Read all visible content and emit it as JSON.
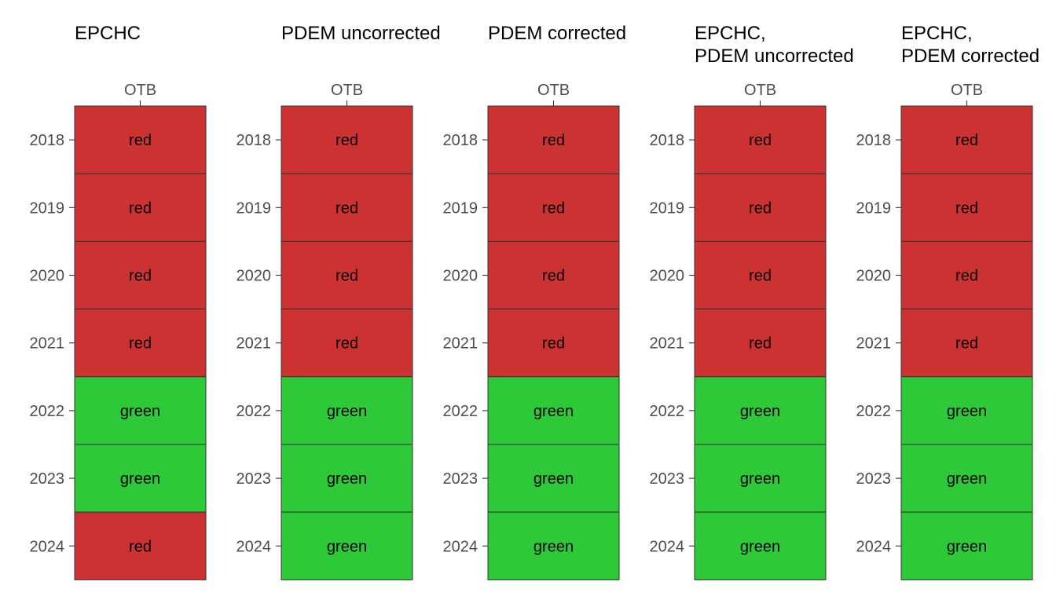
{
  "chart_data": {
    "type": "heatmap",
    "colors": {
      "red": "#CC3231",
      "green": "#2DC938",
      "border": "#333333"
    },
    "x_categories": [
      "OTB"
    ],
    "y_categories": [
      "2018",
      "2019",
      "2020",
      "2021",
      "2022",
      "2023",
      "2024"
    ],
    "panels": [
      {
        "title_lines": [
          "EPCHC"
        ],
        "values": [
          "red",
          "red",
          "red",
          "red",
          "green",
          "green",
          "red"
        ]
      },
      {
        "title_lines": [
          "PDEM uncorrected"
        ],
        "values": [
          "red",
          "red",
          "red",
          "red",
          "green",
          "green",
          "green"
        ]
      },
      {
        "title_lines": [
          "PDEM corrected"
        ],
        "values": [
          "red",
          "red",
          "red",
          "red",
          "green",
          "green",
          "green"
        ]
      },
      {
        "title_lines": [
          "EPCHC,",
          "PDEM uncorrected"
        ],
        "values": [
          "red",
          "red",
          "red",
          "red",
          "green",
          "green",
          "green"
        ]
      },
      {
        "title_lines": [
          "EPCHC,",
          "PDEM corrected"
        ],
        "values": [
          "red",
          "red",
          "red",
          "red",
          "green",
          "green",
          "green"
        ]
      }
    ]
  }
}
